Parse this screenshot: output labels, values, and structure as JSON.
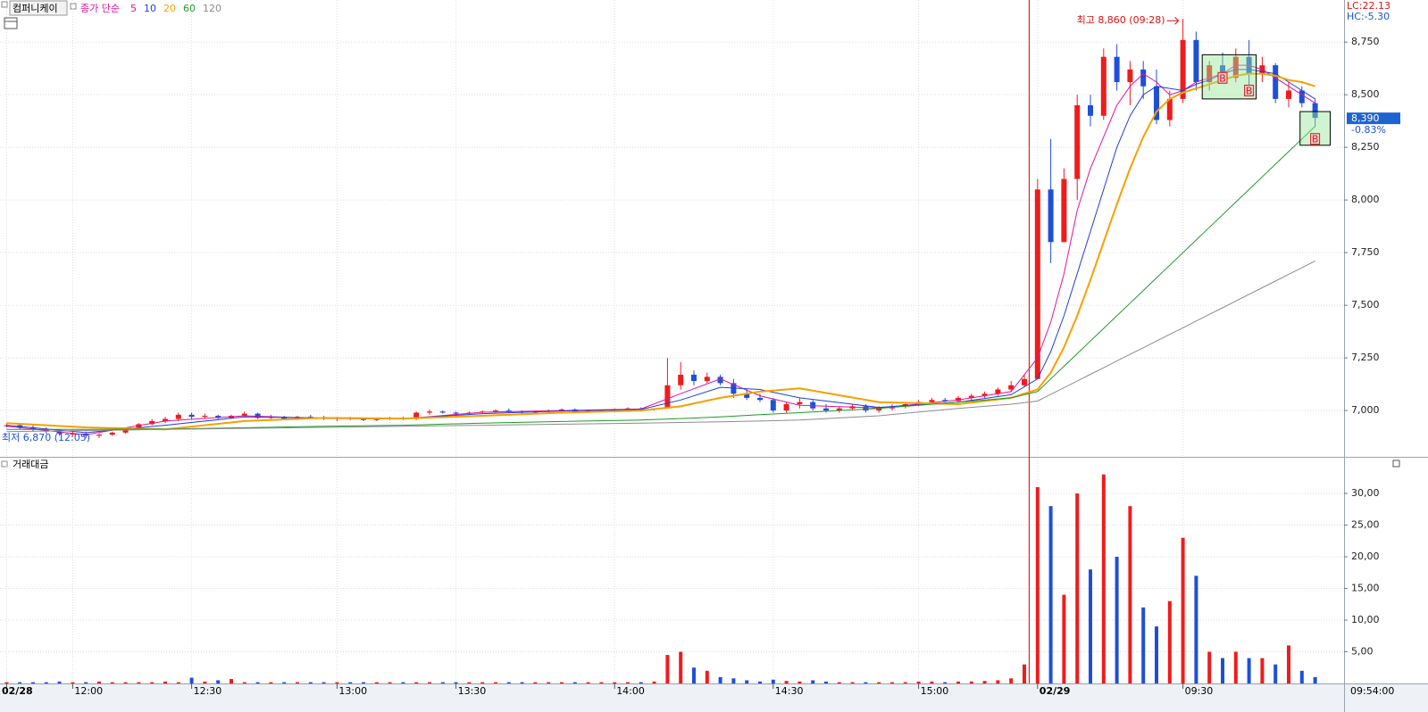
{
  "chart_data": [
    {
      "type": "candlestick",
      "title": "컴퍼니케이",
      "categories": [
        "02/28",
        null,
        null,
        null,
        null,
        "12:00",
        null,
        null,
        null,
        null,
        null,
        null,
        null,
        null,
        "12:30",
        null,
        null,
        null,
        null,
        null,
        null,
        null,
        null,
        null,
        null,
        "13:00",
        null,
        null,
        null,
        null,
        null,
        null,
        null,
        null,
        "13:30",
        null,
        null,
        null,
        null,
        null,
        null,
        null,
        null,
        null,
        null,
        null,
        "14:00",
        null,
        null,
        null,
        null,
        null,
        null,
        null,
        null,
        null,
        null,
        null,
        "14:30",
        null,
        null,
        null,
        null,
        null,
        null,
        null,
        null,
        null,
        null,
        "15:00",
        null,
        null,
        null,
        null,
        null,
        null,
        null,
        null,
        "02/29",
        null,
        null,
        null,
        null,
        null,
        null,
        null,
        null,
        null,
        null,
        "09:30",
        null,
        null,
        null,
        null,
        null,
        null,
        null,
        null,
        null,
        null
      ],
      "open": [
        6930,
        6930,
        6920,
        6910,
        6900,
        6890,
        6890,
        6880,
        6885,
        6895,
        6915,
        6935,
        6950,
        6960,
        6980,
        6970,
        6975,
        6965,
        6975,
        6985,
        6965,
        6970,
        6960,
        6970,
        6965,
        6960,
        6965,
        6960,
        6955,
        6960,
        6965,
        6960,
        6990,
        6995,
        6990,
        6985,
        6990,
        6995,
        7000,
        6995,
        6990,
        6995,
        7000,
        7005,
        6995,
        7000,
        7000,
        7005,
        7010,
        7005,
        7010,
        7120,
        7170,
        7140,
        7160,
        7130,
        7080,
        7060,
        7050,
        7000,
        7030,
        7040,
        7010,
        7000,
        7010,
        7020,
        7000,
        7010,
        7020,
        7030,
        7040,
        7050,
        7045,
        7060,
        7070,
        7080,
        7100,
        7120,
        7150,
        8050,
        7800,
        8100,
        8450,
        8400,
        8680,
        8560,
        8620,
        8540,
        8380,
        8480,
        8760,
        8560,
        8640,
        8580,
        8680,
        8600,
        8640,
        8480,
        8520,
        8460
      ],
      "high": [
        6940,
        6940,
        6930,
        6920,
        6910,
        6900,
        6900,
        6890,
        6900,
        6920,
        6940,
        6960,
        6970,
        6990,
        6990,
        6985,
        6980,
        6980,
        6995,
        6990,
        6980,
        6975,
        6975,
        6980,
        6975,
        6970,
        6970,
        6965,
        6965,
        6970,
        6970,
        6995,
        7005,
        7000,
        6995,
        6995,
        7000,
        7005,
        7010,
        7000,
        7000,
        7005,
        7010,
        7010,
        7005,
        7005,
        7010,
        7015,
        7015,
        7010,
        7250,
        7230,
        7190,
        7180,
        7170,
        7150,
        7100,
        7080,
        7060,
        7040,
        7060,
        7050,
        7030,
        7020,
        7030,
        7030,
        7020,
        7030,
        7040,
        7050,
        7060,
        7060,
        7070,
        7080,
        7090,
        7110,
        7140,
        7170,
        8100,
        8290,
        8150,
        8500,
        8500,
        8720,
        8740,
        8660,
        8660,
        8620,
        8520,
        8860,
        8800,
        8660,
        8700,
        8720,
        8760,
        8680,
        8650,
        8560,
        8540,
        8480
      ],
      "low": [
        6920,
        6910,
        6900,
        6890,
        6880,
        6880,
        6870,
        6870,
        6880,
        6890,
        6910,
        6930,
        6940,
        6950,
        6960,
        6960,
        6960,
        6960,
        6970,
        6960,
        6960,
        6955,
        6955,
        6960,
        6955,
        6950,
        6955,
        6950,
        6950,
        6955,
        6955,
        6955,
        6980,
        6985,
        6980,
        6980,
        6985,
        6990,
        6990,
        6985,
        6985,
        6990,
        6995,
        6990,
        6990,
        6995,
        6995,
        7000,
        7000,
        7000,
        7010,
        7100,
        7120,
        7130,
        7120,
        7060,
        7050,
        7040,
        6990,
        6990,
        7010,
        7000,
        6990,
        6990,
        7000,
        6990,
        6990,
        7000,
        7010,
        7020,
        7030,
        7040,
        7040,
        7050,
        7060,
        7070,
        7090,
        7110,
        7150,
        7700,
        7800,
        8000,
        8350,
        8380,
        8520,
        8450,
        8480,
        8360,
        8350,
        8460,
        8520,
        8520,
        8560,
        8560,
        8540,
        8560,
        8460,
        8440,
        8440,
        8350
      ],
      "close": [
        6930,
        6920,
        6910,
        6900,
        6890,
        6890,
        6880,
        6885,
        6895,
        6915,
        6935,
        6950,
        6960,
        6980,
        6970,
        6975,
        6965,
        6975,
        6985,
        6965,
        6970,
        6960,
        6970,
        6965,
        6960,
        6965,
        6960,
        6955,
        6960,
        6965,
        6960,
        6990,
        6995,
        6990,
        6985,
        6990,
        6995,
        7000,
        6995,
        6990,
        6995,
        7000,
        7005,
        6995,
        7000,
        7000,
        7005,
        7010,
        7005,
        7010,
        7120,
        7170,
        7140,
        7160,
        7130,
        7080,
        7060,
        7050,
        7000,
        7030,
        7040,
        7010,
        7000,
        7010,
        7020,
        7000,
        7010,
        7020,
        7030,
        7040,
        7050,
        7045,
        7060,
        7070,
        7080,
        7100,
        7120,
        7150,
        8050,
        7800,
        8100,
        8450,
        8400,
        8680,
        8560,
        8620,
        8540,
        8380,
        8480,
        8760,
        8560,
        8640,
        8580,
        8680,
        8600,
        8640,
        8480,
        8520,
        8460,
        8390
      ],
      "up_color": "#ee1c1c",
      "down_color": "#1e4fd8",
      "ylim": [
        6780,
        8950
      ],
      "yticks": [
        {
          "value": 7000,
          "label": "7,000"
        },
        {
          "value": 7250,
          "label": "7,250"
        },
        {
          "value": 7500,
          "label": "7,500"
        },
        {
          "value": 7750,
          "label": "7,750"
        },
        {
          "value": 8000,
          "label": "8,000"
        },
        {
          "value": 8250,
          "label": "8,250"
        },
        {
          "value": 8500,
          "label": "8,500"
        },
        {
          "value": 8750,
          "label": "8,750"
        }
      ],
      "grid": true,
      "moving_averages": {
        "label": "종가 단순",
        "x": [
          0,
          6,
          12,
          18,
          24,
          30,
          36,
          42,
          48,
          51,
          54,
          57,
          60,
          66,
          72,
          76,
          78,
          79,
          80,
          81,
          82,
          83,
          84,
          85,
          86,
          87,
          88,
          89,
          90,
          91,
          92,
          93,
          94,
          95,
          96,
          97,
          98,
          99
        ],
        "series": [
          {
            "name": "5",
            "color": "#e0139a",
            "values": [
              6925,
              6885,
              6950,
              6975,
              6962,
              6960,
              6992,
              7000,
              7007,
              7080,
              7150,
              7070,
              7025,
              7012,
              7050,
              7090,
              7250,
              7420,
              7650,
              7950,
              8150,
              8300,
              8450,
              8540,
              8600,
              8560,
              8500,
              8520,
              8560,
              8580,
              8600,
              8640,
              8640,
              8620,
              8580,
              8540,
              8500,
              8460
            ]
          },
          {
            "name": "10",
            "color": "#1f3fd6",
            "values": [
              6930,
              6895,
              6930,
              6970,
              6965,
              6962,
              6985,
              6998,
              7005,
              7050,
              7110,
              7100,
              7060,
              7015,
              7040,
              7075,
              7150,
              7280,
              7450,
              7650,
              7850,
              8050,
              8250,
              8400,
              8500,
              8540,
              8530,
              8520,
              8550,
              8570,
              8600,
              8620,
              8620,
              8610,
              8600,
              8560,
              8520,
              8480
            ]
          },
          {
            "name": "20",
            "color": "#f5a000",
            "values": [
              6940,
              6920,
              6910,
              6950,
              6965,
              6962,
              6975,
              6990,
              7000,
              7020,
              7060,
              7090,
              7105,
              7040,
              7030,
              7060,
              7100,
              7180,
              7300,
              7450,
              7620,
              7800,
              7980,
              8150,
              8300,
              8420,
              8480,
              8510,
              8530,
              8550,
              8570,
              8590,
              8600,
              8600,
              8590,
              8570,
              8560,
              8540
            ]
          },
          {
            "name": "60",
            "color": "#1f9a2a",
            "values": [
              6910,
              6910,
              6912,
              6918,
              6925,
              6930,
              6940,
              6948,
              6955,
              6962,
              6970,
              6980,
              6990,
              7010,
              7040,
              7060,
              7090,
              7150,
              7210,
              7270,
              7330,
              7390,
              7450,
              7510,
              7570,
              7630,
              7690,
              7750,
              7810,
              7870,
              7930,
              7990,
              8050,
              8110,
              8170,
              8230,
              8290,
              8350
            ]
          },
          {
            "name": "120",
            "color": "#8c8c8c",
            "values": [
              6900,
              6905,
              6910,
              6915,
              6920,
              6925,
              6930,
              6935,
              6940,
              6943,
              6946,
              6950,
              6955,
              6975,
              7010,
              7030,
              7045,
              7077,
              7108,
              7140,
              7172,
              7203,
              7235,
              7267,
              7298,
              7330,
              7362,
              7393,
              7425,
              7457,
              7488,
              7520,
              7552,
              7583,
              7615,
              7647,
              7678,
              7710
            ]
          }
        ]
      },
      "annotations": [
        "최고 8,860 (09:28)",
        "최저 6,870 (12:05)"
      ],
      "signals": [
        "B",
        "B",
        "B"
      ],
      "indicators": [
        "LC:22.13",
        "HC:-5.30"
      ],
      "last_price_label": "8,390",
      "change_label": "-0.83%",
      "time_label": "09:54:00"
    },
    {
      "type": "bar",
      "title": "거래대금",
      "values": [
        0.2,
        0.2,
        0.2,
        0.2,
        0.3,
        0.2,
        0.2,
        0.3,
        0.2,
        0.2,
        0.2,
        0.2,
        0.3,
        0.2,
        0.9,
        0.3,
        0.5,
        0.7,
        0.2,
        0.2,
        0.2,
        0.2,
        0.2,
        0.2,
        0.2,
        0.2,
        0.2,
        0.2,
        0.2,
        0.2,
        0.2,
        0.2,
        0.2,
        0.2,
        0.2,
        0.2,
        0.2,
        0.2,
        0.2,
        0.2,
        0.2,
        0.2,
        0.2,
        0.2,
        0.2,
        0.2,
        0.2,
        0.2,
        0.2,
        0.3,
        4.5,
        5,
        2.5,
        2,
        1,
        0.8,
        0.5,
        0.3,
        0.6,
        0.4,
        0.3,
        0.5,
        0.3,
        0.2,
        0.2,
        0.2,
        0.2,
        0.2,
        0.2,
        0.3,
        0.3,
        0.2,
        0.3,
        0.3,
        0.4,
        0.5,
        0.8,
        3,
        31,
        28,
        14,
        30,
        18,
        33,
        20,
        28,
        12,
        9,
        13,
        23,
        17,
        5,
        4,
        5,
        4,
        4,
        3,
        6,
        2,
        1
      ],
      "ylim": [
        0,
        35.5
      ],
      "yticks": [
        {
          "value": 5,
          "label": "5,00"
        },
        {
          "value": 10,
          "label": "10,00"
        },
        {
          "value": 15,
          "label": "15,00"
        },
        {
          "value": 20,
          "label": "20,00"
        },
        {
          "value": 25,
          "label": "25,00"
        },
        {
          "value": 30,
          "label": "30,00"
        }
      ],
      "grid": true
    }
  ]
}
